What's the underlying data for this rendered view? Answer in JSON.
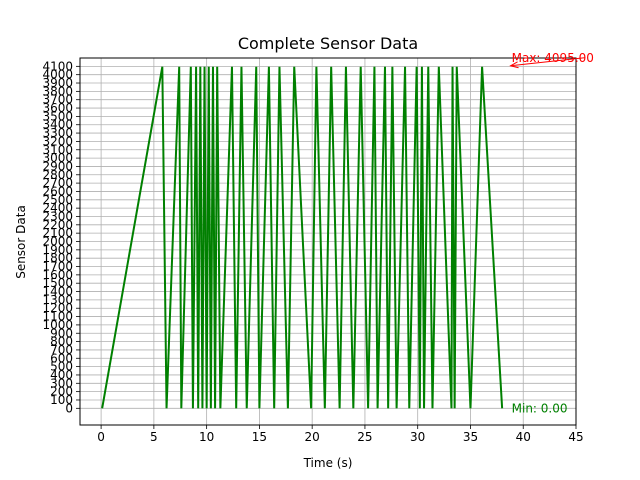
{
  "chart_data": {
    "type": "line",
    "title": "Complete Sensor Data",
    "xlabel": "Time (s)",
    "ylabel": "Sensor Data",
    "xlim": [
      -2.0,
      45
    ],
    "ylim": [
      -200,
      4200
    ],
    "x_ticks": [
      0,
      5,
      10,
      15,
      20,
      25,
      30,
      35,
      40,
      45
    ],
    "y_ticks": [
      0,
      100,
      200,
      300,
      400,
      500,
      600,
      700,
      800,
      900,
      1000,
      1100,
      1200,
      1300,
      1400,
      1500,
      1600,
      1700,
      1800,
      1900,
      2000,
      2100,
      2200,
      2300,
      2400,
      2500,
      2600,
      2700,
      2800,
      2900,
      3000,
      3100,
      3200,
      3300,
      3400,
      3500,
      3600,
      3700,
      3800,
      3900,
      4000,
      4100
    ],
    "grid": true,
    "line_color": "#008000",
    "max_color": "#ff0000",
    "min_color": "#008000",
    "series": [
      {
        "x": [
          0.1,
          5.8,
          5.8,
          6.2,
          6.2,
          7.4,
          7.4,
          7.6,
          7.6,
          8.5,
          8.5,
          8.7,
          8.7,
          9.0,
          9.0,
          9.2,
          9.2,
          9.4,
          9.4,
          9.6,
          9.6,
          9.8,
          9.8,
          10.0,
          10.0,
          10.2,
          10.2,
          10.4,
          10.4,
          10.6,
          10.6,
          10.8,
          10.8,
          11.0,
          11.0,
          11.3,
          11.3,
          12.4,
          12.4,
          12.8,
          12.8,
          13.3,
          13.3,
          13.8,
          13.8,
          14.7,
          14.7,
          15.0,
          15.0,
          15.9,
          15.9,
          16.4,
          16.4,
          16.9,
          16.9,
          17.7,
          17.7,
          18.3,
          18.3,
          19.9,
          19.9,
          20.4,
          20.4,
          21.2,
          21.2,
          21.8,
          21.8,
          22.6,
          22.6,
          23.2,
          23.2,
          23.9,
          23.9,
          24.6,
          24.6,
          25.3,
          25.3,
          25.9,
          25.9,
          26.2,
          26.2,
          26.9,
          26.9,
          27.2,
          27.2,
          27.6,
          27.6,
          28.0,
          28.0,
          28.8,
          28.8,
          29.2,
          29.2,
          29.9,
          29.9,
          30.2,
          30.2,
          30.4,
          30.4,
          30.6,
          30.6,
          31.0,
          31.0,
          31.4,
          31.4,
          32.0,
          32.0,
          33.2,
          33.2,
          33.3,
          33.3,
          33.5,
          33.5,
          33.7,
          33.7,
          35.0,
          35.0,
          36.1,
          36.1,
          38.0
        ]
      }
    ]
  },
  "annotations": {
    "max_text": "Max: 4095.00",
    "min_text": "Min: 0.00",
    "max_value": 4095,
    "min_value": 0,
    "max_arrow_target_x": 38.8,
    "max_text_x": 38.9,
    "min_text_x": 38.9
  }
}
